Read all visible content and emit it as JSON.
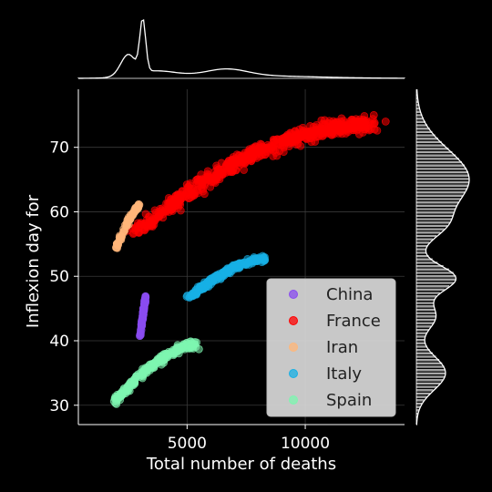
{
  "chart_data": {
    "type": "scatter",
    "title": "",
    "xlabel": "Total number of deaths",
    "ylabel": "Inflexion day for",
    "xlim": [
      400,
      14200
    ],
    "ylim": [
      27,
      79
    ],
    "xticks": [
      5000,
      10000
    ],
    "yticks": [
      30,
      40,
      50,
      60,
      70
    ],
    "grid": true,
    "legend_position": "bottom-right",
    "marginal_x": "kde",
    "marginal_y": "histogram with kde",
    "series": [
      {
        "name": "China",
        "color": "#8a4cf0",
        "x_range": [
          3000,
          3250
        ],
        "y_range": [
          40.5,
          47.0
        ],
        "bend": 0.0,
        "spread": 0.6,
        "count": 110,
        "extra": []
      },
      {
        "name": "France",
        "color": "#ff0000",
        "x_range": [
          2800,
          12800
        ],
        "y_range": [
          56.5,
          73.5
        ],
        "bend": 0.55,
        "spread": 1.1,
        "count": 700,
        "extra": [
          [
            11500,
            74
          ],
          [
            12000,
            74
          ],
          [
            12900,
            75
          ],
          [
            13400,
            74
          ]
        ]
      },
      {
        "name": "Iran",
        "color": "#ffb77a",
        "x_range": [
          2000,
          3000
        ],
        "y_range": [
          54.5,
          61.0
        ],
        "bend": 0.2,
        "spread": 0.5,
        "count": 90,
        "extra": []
      },
      {
        "name": "Italy",
        "color": "#17b0e6",
        "x_range": [
          5000,
          8300
        ],
        "y_range": [
          46.5,
          52.8
        ],
        "bend": 0.35,
        "spread": 0.45,
        "count": 220,
        "extra": []
      },
      {
        "name": "Spain",
        "color": "#7ef5b0",
        "x_range": [
          1900,
          5400
        ],
        "y_range": [
          30.5,
          39.5
        ],
        "bend": 0.35,
        "spread": 0.6,
        "count": 220,
        "extra": [
          [
            4700,
            39
          ],
          [
            5100,
            38.8
          ],
          [
            5500,
            38.7
          ]
        ]
      }
    ]
  }
}
